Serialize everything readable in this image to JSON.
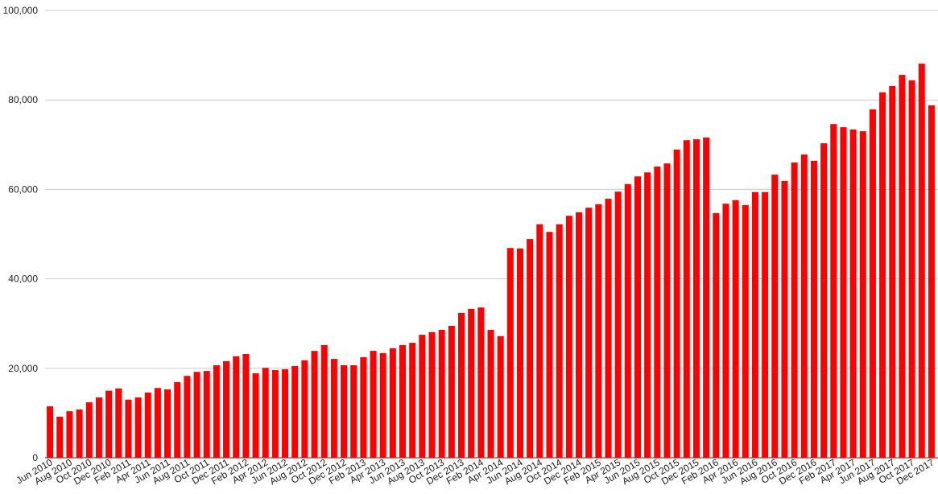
{
  "chart_data": {
    "type": "bar",
    "color": "#ff0000",
    "grid": true,
    "categories": [
      "Jun 2010",
      null,
      "Aug 2010",
      null,
      "Oct 2010",
      null,
      "Dec 2010",
      null,
      "Feb 2011",
      null,
      "Apr 2011",
      null,
      "Jun 2011",
      null,
      "Aug 2011",
      null,
      "Oct 2011",
      null,
      "Dec 2011",
      null,
      "Feb 2012",
      null,
      "Apr 2012",
      null,
      "Jun 2012",
      null,
      "Aug 2012",
      null,
      "Oct 2012",
      null,
      "Dec 2012",
      null,
      "Feb 2013",
      null,
      "Apr 2013",
      null,
      "Jun 2013",
      null,
      "Aug 2013",
      null,
      "Oct 2013",
      null,
      "Dec 2013",
      null,
      "Feb 2014",
      null,
      "Apr 2014",
      null,
      "Jun 2014",
      null,
      "Aug 2014",
      null,
      "Oct 2014",
      null,
      "Dec 2014",
      null,
      "Feb 2015",
      null,
      "Apr 2015",
      null,
      "Jun 2015",
      null,
      "Aug 2015",
      null,
      "Oct 2015",
      null,
      "Dec 2015",
      null,
      "Feb 2016",
      null,
      "Apr 2016",
      null,
      "Jun 2016",
      null,
      "Aug 2016",
      null,
      "Oct 2016",
      null,
      "Dec 2016",
      null,
      "Feb 2017",
      null,
      "Apr 2017",
      null,
      "Jun 2017",
      null,
      "Aug 2017",
      null,
      "Oct 2017",
      null,
      "Dec 2017"
    ],
    "values": [
      11500,
      9200,
      10400,
      10800,
      12400,
      13500,
      15000,
      15500,
      13000,
      13500,
      14600,
      15600,
      15300,
      16900,
      18300,
      19200,
      19400,
      20700,
      21600,
      22700,
      23200,
      18900,
      20100,
      19600,
      19800,
      20500,
      21800,
      23900,
      25200,
      22100,
      20700,
      20700,
      22500,
      23900,
      23400,
      24500,
      25200,
      25700,
      27500,
      28100,
      28600,
      29500,
      32400,
      33300,
      33600,
      28600,
      27200,
      46900,
      46800,
      48900,
      52200,
      50500,
      52200,
      54100,
      54900,
      55900,
      56700,
      57900,
      59500,
      61200,
      62900,
      63800,
      65100,
      65800,
      68900,
      71000,
      71200,
      71600,
      54700,
      56800,
      57600,
      56500,
      59400,
      59400,
      63300,
      61900,
      66000,
      67800,
      66400,
      70300,
      74600,
      73900,
      73400,
      73000,
      77900,
      81700,
      83100,
      85600,
      84400,
      88100,
      78800
    ],
    "ylim": [
      0,
      100000
    ],
    "yticks": [
      0,
      {
        "value": 20000,
        "label": "20,000"
      },
      {
        "value": 40000,
        "label": "40,000"
      },
      {
        "value": 60000,
        "label": "60,000"
      },
      {
        "value": 80000,
        "label": "80,000"
      },
      {
        "value": 100000,
        "label": "100,000"
      }
    ]
  }
}
